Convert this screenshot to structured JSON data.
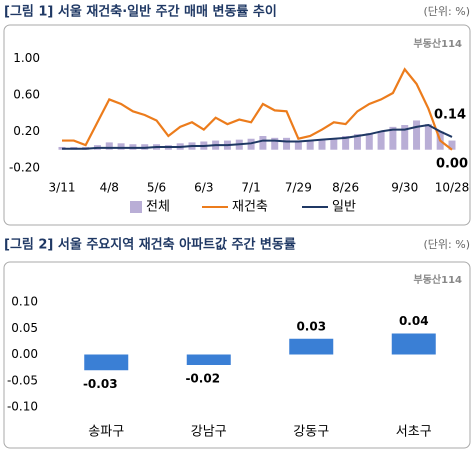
{
  "chart_data": [
    {
      "type": "combo",
      "title": "[그림 1] 서울 재건축·일반 주간 매매 변동률 추이",
      "unit_label": "(단위: %)",
      "source_logo": "부동산114",
      "categories": [
        "3/11",
        null,
        null,
        null,
        "4/8",
        null,
        null,
        null,
        "5/6",
        null,
        null,
        null,
        "6/3",
        null,
        null,
        null,
        "7/1",
        null,
        null,
        null,
        "7/29",
        null,
        null,
        null,
        "8/26",
        null,
        null,
        null,
        null,
        "9/30",
        null,
        null,
        null,
        "10/28"
      ],
      "ylim": [
        -0.2,
        1.2
      ],
      "yticks": [
        {
          "value": -0.2,
          "label": "-0.20"
        },
        {
          "value": 0.2,
          "label": "0.20"
        },
        {
          "value": 0.6,
          "label": "0.60"
        },
        {
          "value": 1.0,
          "label": "1.00"
        }
      ],
      "series": [
        {
          "name": "전체",
          "type": "bar",
          "color": "#b9aed6",
          "values": [
            0.03,
            0.03,
            0.03,
            0.05,
            0.08,
            0.07,
            0.06,
            0.06,
            0.06,
            0.05,
            0.07,
            0.08,
            0.09,
            0.1,
            0.1,
            0.11,
            0.12,
            0.15,
            0.13,
            0.13,
            0.09,
            0.1,
            0.11,
            0.12,
            0.15,
            0.17,
            0.18,
            0.2,
            0.25,
            0.27,
            0.32,
            0.28,
            0.2,
            0.1
          ]
        },
        {
          "name": "재건축",
          "type": "line",
          "color": "#ec7c1c",
          "values": [
            0.1,
            0.1,
            0.05,
            0.3,
            0.55,
            0.5,
            0.42,
            0.38,
            0.32,
            0.15,
            0.25,
            0.3,
            0.22,
            0.35,
            0.28,
            0.33,
            0.3,
            0.5,
            0.43,
            0.42,
            0.12,
            0.15,
            0.22,
            0.3,
            0.28,
            0.42,
            0.5,
            0.55,
            0.62,
            0.88,
            0.72,
            0.45,
            0.1,
            0.0
          ],
          "value_labels": [
            null,
            null,
            null,
            null,
            null,
            null,
            null,
            null,
            null,
            null,
            null,
            null,
            null,
            null,
            null,
            null,
            null,
            null,
            null,
            null,
            null,
            null,
            null,
            null,
            null,
            null,
            null,
            null,
            null,
            null,
            null,
            null,
            null,
            "0.00"
          ]
        },
        {
          "name": "일반",
          "type": "line",
          "color": "#1f3864",
          "values": [
            0.01,
            0.01,
            0.01,
            0.02,
            0.02,
            0.02,
            0.02,
            0.02,
            0.03,
            0.03,
            0.03,
            0.04,
            0.04,
            0.05,
            0.05,
            0.06,
            0.07,
            0.1,
            0.1,
            0.09,
            0.09,
            0.1,
            0.11,
            0.12,
            0.13,
            0.15,
            0.17,
            0.2,
            0.22,
            0.22,
            0.25,
            0.27,
            0.2,
            0.14
          ],
          "value_labels": [
            null,
            null,
            null,
            null,
            null,
            null,
            null,
            null,
            null,
            null,
            null,
            null,
            null,
            null,
            null,
            null,
            null,
            null,
            null,
            null,
            null,
            null,
            null,
            null,
            null,
            null,
            null,
            null,
            null,
            null,
            null,
            null,
            null,
            "0.14"
          ]
        }
      ]
    },
    {
      "type": "bar",
      "title": "[그림 2] 서울 주요지역 재건축 아파트값 주간 변동률",
      "unit_label": "(단위: %)",
      "source_logo": "부동산114",
      "categories": [
        "송파구",
        "강남구",
        "강동구",
        "서초구"
      ],
      "values": [
        -0.03,
        -0.02,
        0.03,
        0.04
      ],
      "value_labels": [
        "-0.03",
        "-0.02",
        "0.03",
        "0.04"
      ],
      "color": "#3a7fd5",
      "negative_label_color": "#e00000",
      "ylim": [
        -0.1,
        0.1
      ],
      "yticks": [
        {
          "value": 0.1,
          "label": "0.10"
        },
        {
          "value": 0.05,
          "label": "0.05"
        },
        {
          "value": 0,
          "label": "0.00"
        },
        {
          "value": -0.05,
          "label": "-0.05"
        },
        {
          "value": -0.1,
          "label": "-0.10"
        }
      ]
    }
  ]
}
